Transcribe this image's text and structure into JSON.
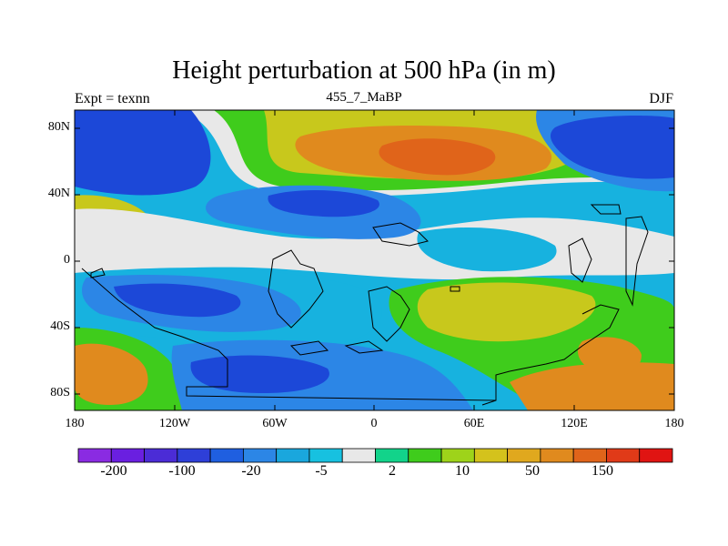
{
  "title": "Height perturbation at 500 hPa (in m)",
  "left_label": "Expt = texnn",
  "center_label": "455_7_MaBP",
  "right_label": "DJF",
  "lat_ticks": [
    "80N",
    "40N",
    "0",
    "40S",
    "80S"
  ],
  "lon_ticks": [
    "180",
    "120W",
    "60W",
    "0",
    "60E",
    "120E",
    "180"
  ],
  "colorbar": {
    "colors": [
      "#8a2be2",
      "#6a1fe0",
      "#4b2cd6",
      "#2e3fd8",
      "#1f5fe0",
      "#2c86e6",
      "#1aa7dd",
      "#17c1e0",
      "#e8e8e8",
      "#12d38a",
      "#3fcc1c",
      "#9ed31a",
      "#d4c21c",
      "#e0a81e",
      "#e08a1e",
      "#e0641a",
      "#e03a18",
      "#e01412"
    ],
    "labels": [
      "-200",
      "-100",
      "-20",
      "-5",
      "2",
      "10",
      "50",
      "150"
    ]
  },
  "field_palette": {
    "strong_negative": "#1c48d8",
    "moderate_negative": "#2c86e6",
    "weak_negative": "#17b2df",
    "neutral": "#e8e8e8",
    "weak_positive": "#3fcc1c",
    "moderate_positive": "#c8c81c",
    "strong_positive": "#e08a1e",
    "peak_positive": "#e0641a"
  }
}
